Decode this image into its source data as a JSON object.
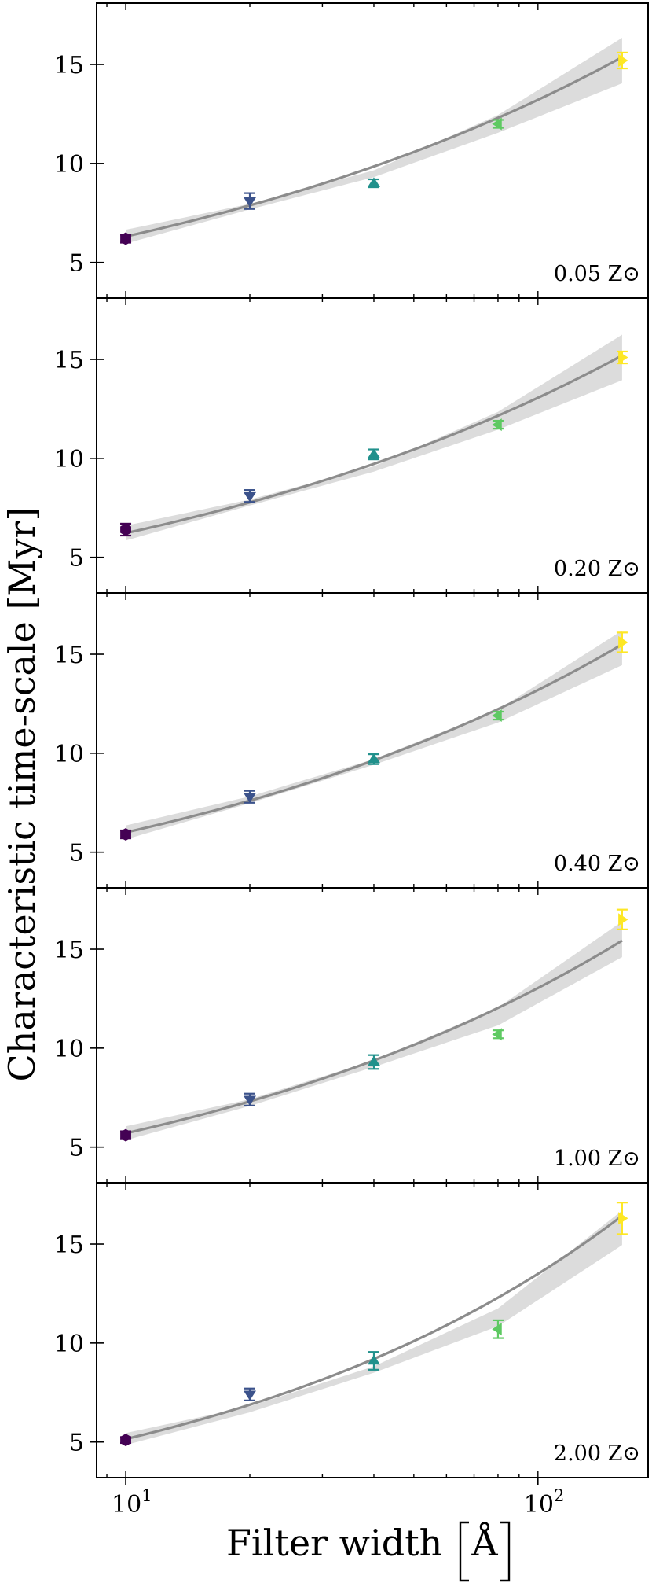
{
  "chart_data": {
    "type": "scatter",
    "layout": "five vertically stacked panels sharing a logarithmic x axis",
    "ylabel": "Characteristic time-scale [Myr]",
    "xlabel": "Filter width [Å]",
    "xlabel_text": "Filter width",
    "xlabel_unit": "Å",
    "xscale": "log",
    "xlim": [
      8.5,
      185
    ],
    "ylim": [
      3.2,
      18.1
    ],
    "yticks": [
      5,
      10,
      15
    ],
    "xticks": [
      {
        "value": 10,
        "base": "10",
        "exp": "1"
      },
      {
        "value": 100,
        "base": "10",
        "exp": "2"
      }
    ],
    "x": [
      10,
      20,
      40,
      80,
      160
    ],
    "point_colors": [
      "#440154",
      "#3b528b",
      "#21918c",
      "#5ec962",
      "#fde725"
    ],
    "point_markers": [
      "hexagon",
      "triangle-down",
      "triangle-up",
      "triangle-left",
      "triangle-right"
    ],
    "fit_color": "#8c8c8c",
    "band_color": "#dcdcdc",
    "panels": [
      {
        "label": "0.05 Z⊙",
        "values": [
          6.2,
          8.1,
          9.0,
          12.0,
          15.2
        ],
        "errors": [
          0.2,
          0.4,
          0.2,
          0.2,
          0.4
        ],
        "fit": {
          "a": 6.31,
          "b": 0.3211
        },
        "band_low": [
          5.95,
          7.68,
          9.31,
          11.55,
          14.05
        ],
        "band_high": [
          6.65,
          7.96,
          9.65,
          12.45,
          16.35
        ]
      },
      {
        "label": "0.20 Z⊙",
        "values": [
          6.4,
          8.1,
          10.2,
          11.7,
          15.1
        ],
        "errors": [
          0.3,
          0.3,
          0.25,
          0.2,
          0.3
        ],
        "fit": {
          "a": 6.22,
          "b": 0.3222
        },
        "band_low": [
          5.85,
          7.62,
          9.33,
          11.45,
          13.95
        ],
        "band_high": [
          6.6,
          7.92,
          9.6,
          12.35,
          16.25
        ]
      },
      {
        "label": "0.40 Z⊙",
        "values": [
          5.9,
          7.8,
          9.7,
          11.9,
          15.6
        ],
        "errors": [
          0.2,
          0.3,
          0.25,
          0.2,
          0.5
        ],
        "fit": {
          "a": 6.0,
          "b": 0.3423
        },
        "band_low": [
          5.65,
          7.48,
          9.42,
          11.55,
          14.45
        ],
        "band_high": [
          6.35,
          7.82,
          9.7,
          12.2,
          16.2
        ]
      },
      {
        "label": "1.00 Z⊙",
        "values": [
          5.6,
          7.4,
          9.3,
          10.7,
          16.5
        ],
        "errors": [
          0.2,
          0.3,
          0.35,
          0.2,
          0.5
        ],
        "fit": {
          "a": 5.7,
          "b": 0.3593
        },
        "band_low": [
          5.35,
          7.08,
          9.05,
          11.15,
          14.6
        ],
        "band_high": [
          6.05,
          7.42,
          9.38,
          12.05,
          16.4
        ]
      },
      {
        "label": "2.00 Z⊙",
        "values": [
          5.1,
          7.4,
          9.1,
          10.7,
          16.3
        ],
        "errors": [
          0.15,
          0.3,
          0.45,
          0.45,
          0.8
        ],
        "fit": {
          "a": 5.15,
          "b": 0.4184
        },
        "band_low": [
          4.85,
          6.5,
          8.5,
          10.85,
          14.95
        ],
        "band_high": [
          5.45,
          6.8,
          8.82,
          11.75,
          16.7
        ]
      }
    ]
  }
}
